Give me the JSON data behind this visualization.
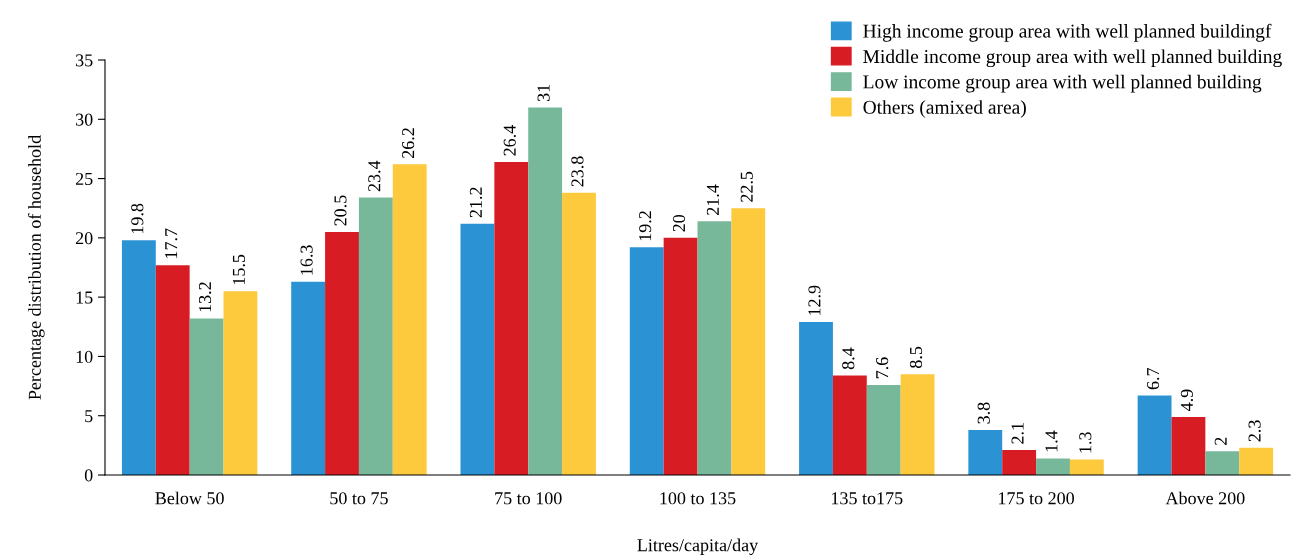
{
  "chart_data": {
    "type": "bar",
    "xlabel": "Litres/capita/day",
    "ylabel": "Percentage distribution of household",
    "categories": [
      "Below 50",
      "50 to 75",
      "75 to 100",
      "100 to 135",
      "135 to175",
      "175 to 200",
      "Above 200"
    ],
    "series": [
      {
        "name": "High income group area with well planned buildingf",
        "color": "#2b93d3",
        "values": [
          19.8,
          16.3,
          21.2,
          19.2,
          12.9,
          3.8,
          6.7
        ]
      },
      {
        "name": "Middle income group area with well planned building",
        "color": "#d71c24",
        "values": [
          17.7,
          20.5,
          26.4,
          20,
          8.4,
          2.1,
          4.9
        ]
      },
      {
        "name": "Low income group area with well planned building",
        "color": "#78b89a",
        "values": [
          13.2,
          23.4,
          31,
          21.4,
          7.6,
          1.4,
          2
        ]
      },
      {
        "name": "Others (amixed area)",
        "color": "#fdc93d",
        "values": [
          15.5,
          26.2,
          23.8,
          22.5,
          8.5,
          1.3,
          2.3
        ]
      }
    ],
    "ylim": [
      0,
      35
    ],
    "yticks": [
      0,
      5,
      10,
      15,
      20,
      25,
      30,
      35
    ],
    "grid": false,
    "legend": "top right",
    "data_labels": true
  }
}
